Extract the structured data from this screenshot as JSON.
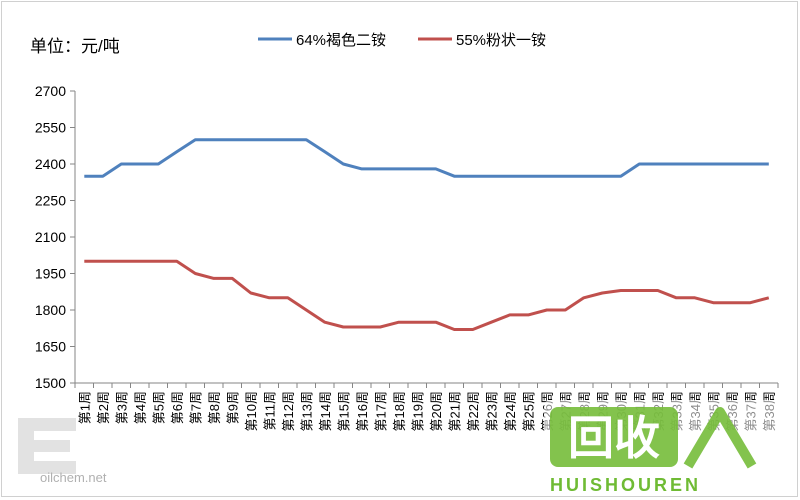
{
  "chart_data": {
    "type": "line",
    "title": "",
    "xlabel": "",
    "ylabel": "单位：元/吨",
    "ylim": [
      1500,
      2700
    ],
    "yticks": [
      1500,
      1650,
      1800,
      1950,
      2100,
      2250,
      2400,
      2550,
      2700
    ],
    "grid": false,
    "legend": "top",
    "categories": [
      "第1周",
      "第2周",
      "第3周",
      "第4周",
      "第5周",
      "第6周",
      "第7周",
      "第8周",
      "第9周",
      "第10周",
      "第11周",
      "第12周",
      "第13周",
      "第14周",
      "第15周",
      "第16周",
      "第17周",
      "第18周",
      "第19周",
      "第20周",
      "第21周",
      "第22周",
      "第23周",
      "第24周",
      "第25周",
      "第26周",
      "第27周",
      "第28周",
      "第29周",
      "第30周",
      "第31周",
      "第32周",
      "第33周",
      "第34周",
      "第35周",
      "第36周",
      "第37周",
      "第38周"
    ],
    "series": [
      {
        "name": "64%褐色二铵",
        "color": "#4f81bd",
        "values": [
          2350,
          2350,
          2400,
          2400,
          2400,
          2450,
          2500,
          2500,
          2500,
          2500,
          2500,
          2500,
          2500,
          2450,
          2400,
          2380,
          2380,
          2380,
          2380,
          2380,
          2350,
          2350,
          2350,
          2350,
          2350,
          2350,
          2350,
          2350,
          2350,
          2350,
          2400,
          2400,
          2400,
          2400,
          2400,
          2400,
          2400,
          2400
        ]
      },
      {
        "name": "55%粉状一铵",
        "color": "#c0504d",
        "values": [
          2000,
          2000,
          2000,
          2000,
          2000,
          2000,
          1950,
          1930,
          1930,
          1870,
          1850,
          1850,
          1800,
          1750,
          1730,
          1730,
          1730,
          1750,
          1750,
          1750,
          1720,
          1720,
          1750,
          1780,
          1780,
          1800,
          1800,
          1850,
          1870,
          1880,
          1880,
          1880,
          1850,
          1850,
          1830,
          1830,
          1830,
          1850
        ]
      }
    ]
  },
  "watermarks": {
    "left_logo_text": "oilchem.net",
    "right_logo_text": "回收",
    "right_logo_subtext": "HUISHOUREN"
  }
}
